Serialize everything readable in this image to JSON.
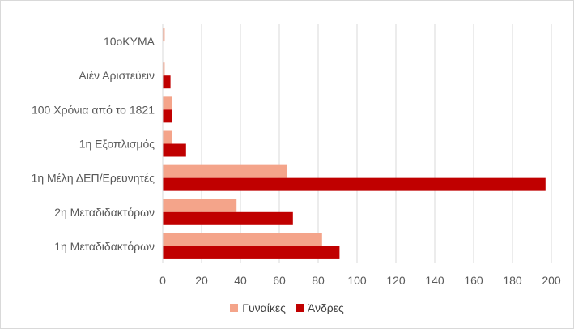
{
  "chart_data": {
    "type": "bar",
    "orientation": "horizontal",
    "categories": [
      "10oKYMA",
      "Αιέν Αριστεύειν",
      "100 Χρόνια από το 1821",
      "1η Εξοπλισμός",
      "1η Μέλη ΔΕΠ/Ερευνητές",
      "2η Μεταδιδακτόρων",
      "1η Μεταδιδακτόρων"
    ],
    "series": [
      {
        "name": "Γυναίκες",
        "color": "#f4a48a",
        "values": [
          1,
          1,
          5,
          5,
          64,
          38,
          82
        ]
      },
      {
        "name": "Άνδρες",
        "color": "#c00000",
        "values": [
          0,
          4,
          5,
          12,
          197,
          67,
          91
        ]
      }
    ],
    "xlim": [
      0,
      200
    ],
    "xticks": [
      0,
      20,
      40,
      60,
      80,
      100,
      120,
      140,
      160,
      180,
      200
    ],
    "grid": true,
    "legend_position": "bottom",
    "title": "",
    "xlabel": "",
    "ylabel": ""
  }
}
